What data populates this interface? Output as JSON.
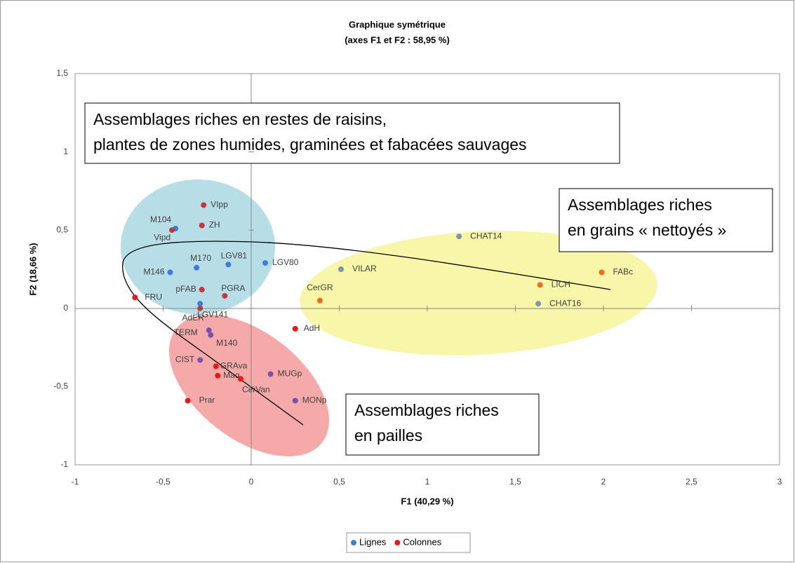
{
  "chart_data": {
    "type": "scatter",
    "title": "Graphique symétrique",
    "subtitle": "(axes F1 et F2 : 58,95 %)",
    "xlabel": "F1 (40,29 %)",
    "ylabel": "F2 (18,66 %)",
    "xlim": [
      -1,
      3
    ],
    "ylim": [
      -1,
      1.5
    ],
    "xticks": [
      -1,
      {
        "value": -0.5,
        "label": "-0,5"
      },
      0,
      {
        "value": 0.5,
        "label": "0,5"
      },
      1,
      {
        "value": 1.5,
        "label": "1,5"
      },
      2,
      {
        "value": 2.5,
        "label": "2,5"
      },
      3
    ],
    "yticks": [
      -1,
      {
        "value": -0.5,
        "label": "-0,5"
      },
      0,
      {
        "value": 0.5,
        "label": "0,5"
      },
      1,
      {
        "value": 1.5,
        "label": "1,5"
      }
    ],
    "series": [
      {
        "name": "Lignes",
        "color": "#3b7ddd",
        "labels": [
          "M104",
          "M170",
          "LGV81",
          "LGV80",
          "M146",
          "LGV141",
          "CHAT14",
          "VILAR",
          "CHAT16",
          "TERM",
          "M140",
          "CIST",
          "MUGp",
          "MONp"
        ],
        "x": [
          -0.43,
          -0.31,
          -0.13,
          0.08,
          -0.46,
          -0.29,
          1.18,
          0.51,
          1.63,
          -0.24,
          -0.23,
          -0.29,
          0.11,
          0.25
        ],
        "values": [
          0.51,
          0.26,
          0.28,
          0.29,
          0.23,
          0.03,
          0.46,
          0.25,
          0.03,
          -0.14,
          -0.17,
          -0.33,
          -0.42,
          -0.59
        ],
        "colors": [
          "#3b7ddd",
          "#3b7ddd",
          "#3b7ddd",
          "#3b7ddd",
          "#3b7ddd",
          "#3b7ddd",
          "#7f96a8",
          "#7f96a8",
          "#7f96a8",
          "#7b52ab",
          "#7b52ab",
          "#7b52ab",
          "#7b52ab",
          "#7b52ab"
        ]
      },
      {
        "name": "Colonnes",
        "color": "#e8191b",
        "labels": [
          "VIpp",
          "ZH",
          "Vipd",
          "pFAB",
          "PGRA",
          "AdER",
          "FRU",
          "AdH",
          "GRAva",
          "Maq",
          "CerVan",
          "Prar",
          "CerGR",
          "LICH",
          "FABc"
        ],
        "x": [
          -0.27,
          -0.28,
          -0.45,
          -0.28,
          -0.15,
          -0.29,
          -0.66,
          0.25,
          -0.2,
          -0.19,
          -0.06,
          -0.36,
          0.39,
          1.64,
          1.99
        ],
        "values": [
          0.66,
          0.53,
          0.5,
          0.12,
          0.08,
          0.0,
          0.07,
          -0.13,
          -0.37,
          -0.43,
          -0.45,
          -0.59,
          0.05,
          0.15,
          0.23
        ],
        "colors": [
          "#c0393b",
          "#c0393b",
          "#c0393b",
          "#c0393b",
          "#c0393b",
          "#c0393b",
          "#e8191b",
          "#e8191b",
          "#e8191b",
          "#e8191b",
          "#e8191b",
          "#e8191b",
          "#f26a1b",
          "#f26a1b",
          "#f26a1b"
        ]
      }
    ],
    "annotations": [
      [
        "Assemblages riches en restes de raisins,",
        "plantes de zones humides, graminées et fabacées sauvages"
      ],
      [
        "Assemblages riches",
        "en grains « nettoyés »"
      ],
      [
        "Assemblages riches",
        "en pailles"
      ]
    ],
    "legend": "bottom"
  }
}
